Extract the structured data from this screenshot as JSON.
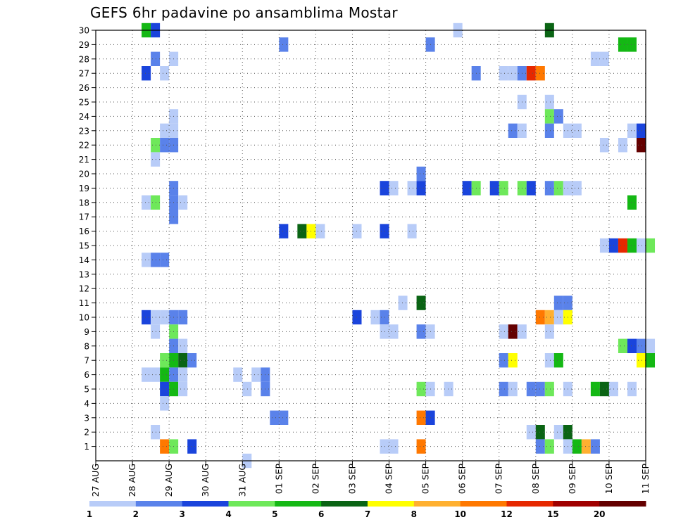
{
  "chart_data": {
    "type": "heatmap",
    "title": "GEFS 6hr padavine po ansamblima Mostar",
    "xlabel": "",
    "ylabel": "",
    "x_ticks": [
      "27 AUG",
      "28 AUG",
      "29 AUG",
      "30 AUG",
      "31 AUG",
      "01 SEP",
      "02 SEP",
      "03 SEP",
      "04 SEP",
      "05 SEP",
      "06 SEP",
      "07 SEP",
      "08 SEP",
      "09 SEP",
      "10 SEP",
      "11 SEP"
    ],
    "x_range_days": [
      0,
      15
    ],
    "y_range": [
      0,
      30
    ],
    "y_ticks": [
      1,
      2,
      3,
      4,
      5,
      6,
      7,
      8,
      9,
      10,
      11,
      12,
      13,
      14,
      15,
      16,
      17,
      18,
      19,
      20,
      21,
      22,
      23,
      24,
      25,
      26,
      27,
      28,
      29,
      30
    ],
    "grid": true,
    "legend": {
      "placement": "bottom",
      "labels": [
        "1",
        "2",
        "3",
        "4",
        "5",
        "6",
        "7",
        "8",
        "10",
        "12",
        "15",
        "20"
      ],
      "colors": [
        "#b8ccf8",
        "#5a82ea",
        "#1a44dc",
        "#6ee85a",
        "#14b814",
        "#0a6414",
        "#ffff00",
        "#ffb030",
        "#ff7800",
        "#e62800",
        "#a00000",
        "#640000"
      ]
    },
    "cells": [
      {
        "t": 5,
        "m": 30,
        "v": 5
      },
      {
        "t": 6,
        "m": 30,
        "v": 3
      },
      {
        "t": 39,
        "m": 30,
        "v": 1
      },
      {
        "t": 49,
        "m": 30,
        "v": 6
      },
      {
        "t": 36,
        "m": 29,
        "v": 2
      },
      {
        "t": 20,
        "m": 29,
        "v": 2
      },
      {
        "t": 57,
        "m": 29,
        "v": 5
      },
      {
        "t": 58,
        "m": 29,
        "v": 5
      },
      {
        "t": 6,
        "m": 28,
        "v": 2
      },
      {
        "t": 8,
        "m": 28,
        "v": 1
      },
      {
        "t": 54,
        "m": 28,
        "v": 1
      },
      {
        "t": 55,
        "m": 28,
        "v": 1
      },
      {
        "t": 5,
        "m": 27,
        "v": 3
      },
      {
        "t": 7,
        "m": 27,
        "v": 1
      },
      {
        "t": 41,
        "m": 27,
        "v": 2
      },
      {
        "t": 44,
        "m": 27,
        "v": 1
      },
      {
        "t": 45,
        "m": 27,
        "v": 1
      },
      {
        "t": 46,
        "m": 27,
        "v": 2
      },
      {
        "t": 47,
        "m": 27,
        "v": 12
      },
      {
        "t": 48,
        "m": 27,
        "v": 10
      },
      {
        "t": 46,
        "m": 25,
        "v": 1
      },
      {
        "t": 49,
        "m": 25,
        "v": 1
      },
      {
        "t": 8,
        "m": 24,
        "v": 1
      },
      {
        "t": 49,
        "m": 24,
        "v": 4
      },
      {
        "t": 50,
        "m": 24,
        "v": 2
      },
      {
        "t": 7,
        "m": 23,
        "v": 1
      },
      {
        "t": 8,
        "m": 23,
        "v": 1
      },
      {
        "t": 45,
        "m": 23,
        "v": 2
      },
      {
        "t": 46,
        "m": 23,
        "v": 1
      },
      {
        "t": 49,
        "m": 23,
        "v": 2
      },
      {
        "t": 51,
        "m": 23,
        "v": 1
      },
      {
        "t": 52,
        "m": 23,
        "v": 1
      },
      {
        "t": 58,
        "m": 23,
        "v": 1
      },
      {
        "t": 59,
        "m": 23,
        "v": 3
      },
      {
        "t": 6,
        "m": 22,
        "v": 4
      },
      {
        "t": 7,
        "m": 22,
        "v": 2
      },
      {
        "t": 8,
        "m": 22,
        "v": 2
      },
      {
        "t": 55,
        "m": 22,
        "v": 1
      },
      {
        "t": 57,
        "m": 22,
        "v": 1
      },
      {
        "t": 59,
        "m": 22,
        "v": 20
      },
      {
        "t": 6,
        "m": 21,
        "v": 1
      },
      {
        "t": 35,
        "m": 20,
        "v": 2
      },
      {
        "t": 8,
        "m": 19,
        "v": 2
      },
      {
        "t": 31,
        "m": 19,
        "v": 3
      },
      {
        "t": 32,
        "m": 19,
        "v": 1
      },
      {
        "t": 34,
        "m": 19,
        "v": 1
      },
      {
        "t": 35,
        "m": 19,
        "v": 3
      },
      {
        "t": 40,
        "m": 19,
        "v": 3
      },
      {
        "t": 41,
        "m": 19,
        "v": 4
      },
      {
        "t": 43,
        "m": 19,
        "v": 3
      },
      {
        "t": 44,
        "m": 19,
        "v": 4
      },
      {
        "t": 46,
        "m": 19,
        "v": 4
      },
      {
        "t": 47,
        "m": 19,
        "v": 3
      },
      {
        "t": 49,
        "m": 19,
        "v": 2
      },
      {
        "t": 50,
        "m": 19,
        "v": 4
      },
      {
        "t": 51,
        "m": 19,
        "v": 1
      },
      {
        "t": 52,
        "m": 19,
        "v": 1
      },
      {
        "t": 5,
        "m": 18,
        "v": 1
      },
      {
        "t": 6,
        "m": 18,
        "v": 4
      },
      {
        "t": 8,
        "m": 18,
        "v": 2
      },
      {
        "t": 9,
        "m": 18,
        "v": 1
      },
      {
        "t": 58,
        "m": 18,
        "v": 5
      },
      {
        "t": 8,
        "m": 17,
        "v": 2
      },
      {
        "t": 20,
        "m": 16,
        "v": 3
      },
      {
        "t": 22,
        "m": 16,
        "v": 6
      },
      {
        "t": 23,
        "m": 16,
        "v": 7
      },
      {
        "t": 24,
        "m": 16,
        "v": 1
      },
      {
        "t": 28,
        "m": 16,
        "v": 1
      },
      {
        "t": 31,
        "m": 16,
        "v": 3
      },
      {
        "t": 34,
        "m": 16,
        "v": 1
      },
      {
        "t": 55,
        "m": 15,
        "v": 1
      },
      {
        "t": 56,
        "m": 15,
        "v": 3
      },
      {
        "t": 57,
        "m": 15,
        "v": 12
      },
      {
        "t": 58,
        "m": 15,
        "v": 5
      },
      {
        "t": 59,
        "m": 15,
        "v": 1
      },
      {
        "t": 60,
        "m": 15,
        "v": 4
      },
      {
        "t": 5,
        "m": 14,
        "v": 1
      },
      {
        "t": 6,
        "m": 14,
        "v": 2
      },
      {
        "t": 7,
        "m": 14,
        "v": 2
      },
      {
        "t": 33,
        "m": 11,
        "v": 1
      },
      {
        "t": 35,
        "m": 11,
        "v": 6
      },
      {
        "t": 50,
        "m": 11,
        "v": 2
      },
      {
        "t": 51,
        "m": 11,
        "v": 2
      },
      {
        "t": 5,
        "m": 10,
        "v": 3
      },
      {
        "t": 6,
        "m": 10,
        "v": 1
      },
      {
        "t": 7,
        "m": 10,
        "v": 1
      },
      {
        "t": 8,
        "m": 10,
        "v": 2
      },
      {
        "t": 9,
        "m": 10,
        "v": 2
      },
      {
        "t": 28,
        "m": 10,
        "v": 3
      },
      {
        "t": 30,
        "m": 10,
        "v": 1
      },
      {
        "t": 31,
        "m": 10,
        "v": 2
      },
      {
        "t": 48,
        "m": 10,
        "v": 10
      },
      {
        "t": 49,
        "m": 10,
        "v": 8
      },
      {
        "t": 50,
        "m": 10,
        "v": 1
      },
      {
        "t": 51,
        "m": 10,
        "v": 7
      },
      {
        "t": 6,
        "m": 9,
        "v": 1
      },
      {
        "t": 8,
        "m": 9,
        "v": 4
      },
      {
        "t": 31,
        "m": 9,
        "v": 1
      },
      {
        "t": 32,
        "m": 9,
        "v": 1
      },
      {
        "t": 35,
        "m": 9,
        "v": 2
      },
      {
        "t": 36,
        "m": 9,
        "v": 1
      },
      {
        "t": 44,
        "m": 9,
        "v": 1
      },
      {
        "t": 45,
        "m": 9,
        "v": 20
      },
      {
        "t": 46,
        "m": 9,
        "v": 1
      },
      {
        "t": 49,
        "m": 9,
        "v": 1
      },
      {
        "t": 8,
        "m": 8,
        "v": 2
      },
      {
        "t": 9,
        "m": 8,
        "v": 1
      },
      {
        "t": 57,
        "m": 8,
        "v": 4
      },
      {
        "t": 58,
        "m": 8,
        "v": 3
      },
      {
        "t": 59,
        "m": 8,
        "v": 2
      },
      {
        "t": 60,
        "m": 8,
        "v": 1
      },
      {
        "t": 7,
        "m": 7,
        "v": 4
      },
      {
        "t": 8,
        "m": 7,
        "v": 5
      },
      {
        "t": 9,
        "m": 7,
        "v": 6
      },
      {
        "t": 10,
        "m": 7,
        "v": 2
      },
      {
        "t": 44,
        "m": 7,
        "v": 2
      },
      {
        "t": 45,
        "m": 7,
        "v": 7
      },
      {
        "t": 49,
        "m": 7,
        "v": 1
      },
      {
        "t": 50,
        "m": 7,
        "v": 5
      },
      {
        "t": 59,
        "m": 7,
        "v": 7
      },
      {
        "t": 60,
        "m": 7,
        "v": 5
      },
      {
        "t": 5,
        "m": 6,
        "v": 1
      },
      {
        "t": 6,
        "m": 6,
        "v": 1
      },
      {
        "t": 7,
        "m": 6,
        "v": 5
      },
      {
        "t": 8,
        "m": 6,
        "v": 2
      },
      {
        "t": 9,
        "m": 6,
        "v": 1
      },
      {
        "t": 15,
        "m": 6,
        "v": 1
      },
      {
        "t": 17,
        "m": 6,
        "v": 1
      },
      {
        "t": 18,
        "m": 6,
        "v": 2
      },
      {
        "t": 7,
        "m": 5,
        "v": 3
      },
      {
        "t": 8,
        "m": 5,
        "v": 5
      },
      {
        "t": 9,
        "m": 5,
        "v": 1
      },
      {
        "t": 16,
        "m": 5,
        "v": 1
      },
      {
        "t": 18,
        "m": 5,
        "v": 2
      },
      {
        "t": 35,
        "m": 5,
        "v": 4
      },
      {
        "t": 36,
        "m": 5,
        "v": 1
      },
      {
        "t": 38,
        "m": 5,
        "v": 1
      },
      {
        "t": 44,
        "m": 5,
        "v": 2
      },
      {
        "t": 45,
        "m": 5,
        "v": 1
      },
      {
        "t": 47,
        "m": 5,
        "v": 2
      },
      {
        "t": 48,
        "m": 5,
        "v": 2
      },
      {
        "t": 49,
        "m": 5,
        "v": 4
      },
      {
        "t": 51,
        "m": 5,
        "v": 1
      },
      {
        "t": 54,
        "m": 5,
        "v": 5
      },
      {
        "t": 55,
        "m": 5,
        "v": 6
      },
      {
        "t": 56,
        "m": 5,
        "v": 1
      },
      {
        "t": 58,
        "m": 5,
        "v": 1
      },
      {
        "t": 7,
        "m": 4,
        "v": 1
      },
      {
        "t": 19,
        "m": 3,
        "v": 2
      },
      {
        "t": 20,
        "m": 3,
        "v": 2
      },
      {
        "t": 35,
        "m": 3,
        "v": 10
      },
      {
        "t": 36,
        "m": 3,
        "v": 3
      },
      {
        "t": 6,
        "m": 2,
        "v": 1
      },
      {
        "t": 47,
        "m": 2,
        "v": 1
      },
      {
        "t": 48,
        "m": 2,
        "v": 6
      },
      {
        "t": 50,
        "m": 2,
        "v": 1
      },
      {
        "t": 51,
        "m": 2,
        "v": 6
      },
      {
        "t": 7,
        "m": 1,
        "v": 10
      },
      {
        "t": 8,
        "m": 1,
        "v": 4
      },
      {
        "t": 10,
        "m": 1,
        "v": 3
      },
      {
        "t": 31,
        "m": 1,
        "v": 1
      },
      {
        "t": 32,
        "m": 1,
        "v": 1
      },
      {
        "t": 35,
        "m": 1,
        "v": 10
      },
      {
        "t": 48,
        "m": 1,
        "v": 2
      },
      {
        "t": 49,
        "m": 1,
        "v": 4
      },
      {
        "t": 51,
        "m": 1,
        "v": 1
      },
      {
        "t": 52,
        "m": 1,
        "v": 5
      },
      {
        "t": 53,
        "m": 1,
        "v": 8
      },
      {
        "t": 54,
        "m": 1,
        "v": 2
      },
      {
        "t": 16,
        "m": 0,
        "v": 1
      }
    ]
  }
}
